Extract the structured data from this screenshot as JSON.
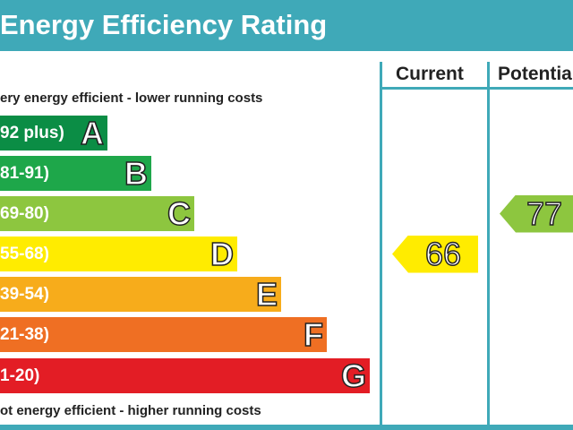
{
  "title": "Energy Efficiency Rating",
  "columns": {
    "current": "Current",
    "potential": "Potential"
  },
  "notes": {
    "top": "ery energy efficient - lower running costs",
    "bottom": "ot energy efficient - higher running costs"
  },
  "chart_data": {
    "type": "bar",
    "title": "Energy Efficiency Rating",
    "bands": [
      {
        "letter": "A",
        "range": "92 plus)",
        "color": "#0b8d45"
      },
      {
        "letter": "B",
        "range": "81-91)",
        "color": "#1ea74a"
      },
      {
        "letter": "C",
        "range": "69-80)",
        "color": "#8dc63f"
      },
      {
        "letter": "D",
        "range": "55-68)",
        "color": "#ffec00"
      },
      {
        "letter": "E",
        "range": "39-54)",
        "color": "#f7ac1b"
      },
      {
        "letter": "F",
        "range": "21-38)",
        "color": "#ef6f23"
      },
      {
        "letter": "G",
        "range": "1-20)",
        "color": "#e31d25"
      }
    ],
    "current": {
      "value": 66,
      "band": "D",
      "color": "#ffec00"
    },
    "potential": {
      "value": 77,
      "band": "C",
      "color": "#8dc63f"
    }
  }
}
